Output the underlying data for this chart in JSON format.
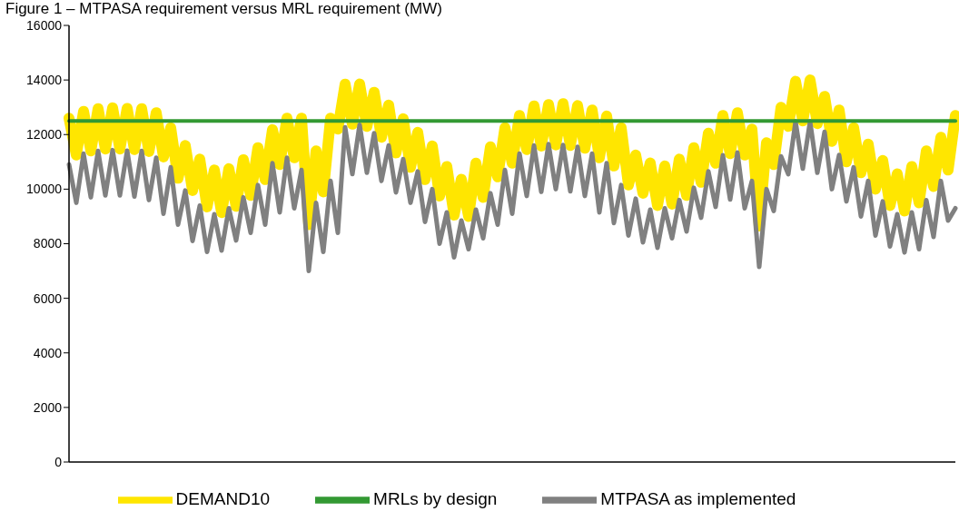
{
  "chart_data": {
    "type": "line",
    "title": "Figure 1 – MTPASA requirement versus MRL requirement (MW)",
    "categories": [
      null,
      null,
      null,
      null,
      null,
      null,
      null,
      null,
      null,
      null,
      null,
      null,
      null,
      null,
      null,
      null,
      null,
      null,
      null,
      null,
      null,
      null,
      null,
      null,
      null,
      null,
      null,
      null,
      null,
      null,
      null,
      null,
      null,
      null,
      null,
      null,
      null,
      null,
      null,
      null,
      null,
      null,
      null,
      null,
      null,
      null,
      null,
      null,
      null,
      null,
      null,
      null,
      null,
      null,
      null,
      null,
      null,
      null,
      null,
      null,
      null,
      null,
      null,
      null,
      null,
      null,
      null,
      null,
      null,
      null,
      null,
      null,
      null,
      null,
      null,
      null,
      null,
      null,
      null,
      null,
      null,
      null,
      null,
      null,
      null,
      null,
      null,
      null,
      null,
      null,
      null,
      null,
      null,
      null,
      null,
      null,
      null,
      null,
      null,
      null,
      null,
      null,
      null,
      null,
      null,
      null,
      null,
      null,
      null,
      null,
      null,
      null,
      null,
      null,
      null,
      null,
      null,
      null,
      null,
      null,
      null,
      null,
      null
    ],
    "series": [
      {
        "name": "DEMAND10",
        "color": "#ffe600",
        "values": [
          12600,
          11250,
          12850,
          11400,
          12950,
          11470,
          12980,
          11470,
          12960,
          11450,
          12950,
          11380,
          12800,
          11180,
          12250,
          10400,
          11600,
          9950,
          11100,
          9350,
          10700,
          9140,
          10750,
          9370,
          11080,
          9770,
          11520,
          10350,
          12180,
          10900,
          12600,
          11150,
          12600,
          8700,
          11400,
          9900,
          12600,
          12200,
          13850,
          12380,
          13850,
          12300,
          13550,
          11900,
          13080,
          11330,
          12580,
          10800,
          12080,
          10350,
          11580,
          9750,
          10830,
          9050,
          10360,
          9000,
          10950,
          9700,
          11550,
          10450,
          12250,
          10950,
          12700,
          11450,
          13050,
          11580,
          13100,
          11620,
          13130,
          11600,
          13060,
          11500,
          12900,
          11150,
          12680,
          10850,
          12250,
          10150,
          11250,
          9850,
          10960,
          9400,
          10850,
          9450,
          11100,
          9770,
          11520,
          10250,
          12050,
          10950,
          12700,
          11300,
          12800,
          11250,
          12200,
          8650,
          11700,
          10900,
          13000,
          12300,
          13950,
          12500,
          14000,
          12400,
          13400,
          11750,
          12900,
          11000,
          12250,
          10600,
          11650,
          10000,
          11050,
          9400,
          10560,
          9200,
          10830,
          9500,
          11400,
          10100,
          11900,
          10700,
          12700
        ]
      },
      {
        "name": "MTPASA as implemented",
        "color": "#808080",
        "values": [
          10900,
          9500,
          11300,
          9700,
          11400,
          9770,
          11430,
          9770,
          11410,
          9730,
          11400,
          9600,
          11150,
          9100,
          10800,
          8700,
          9950,
          8100,
          9400,
          7700,
          9080,
          7750,
          9300,
          8120,
          9700,
          8400,
          10150,
          8700,
          10950,
          9150,
          11150,
          9300,
          10700,
          7000,
          9500,
          7700,
          10300,
          8400,
          12270,
          10550,
          12360,
          10600,
          12050,
          10300,
          11600,
          9880,
          11100,
          9500,
          10650,
          8800,
          10000,
          8000,
          9150,
          7500,
          8850,
          7800,
          9250,
          8200,
          9850,
          8700,
          10700,
          9100,
          11300,
          9750,
          11600,
          9900,
          11650,
          10000,
          11620,
          9920,
          11550,
          9750,
          11300,
          9150,
          10950,
          8760,
          10150,
          8300,
          9650,
          8050,
          9250,
          7850,
          9300,
          8200,
          9600,
          8450,
          10050,
          8950,
          10650,
          9350,
          11240,
          9620,
          11340,
          9300,
          10300,
          7150,
          10000,
          9200,
          11200,
          10550,
          12480,
          10750,
          12480,
          10600,
          12100,
          10000,
          11250,
          9550,
          10800,
          9000,
          10300,
          8300,
          9550,
          7900,
          9080,
          7680,
          9150,
          7800,
          9600,
          8250,
          10300,
          8850,
          9300
        ]
      },
      {
        "name": "MRLs by design",
        "color": "#339933",
        "values": [
          12500,
          12500,
          12500,
          12500,
          12500,
          12500,
          12500,
          12500,
          12500,
          12500,
          12500,
          12500,
          12500,
          12500,
          12500,
          12500,
          12500,
          12500,
          12500,
          12500,
          12500,
          12500,
          12500,
          12500,
          12500,
          12500,
          12500,
          12500,
          12500,
          12500,
          12500,
          12500,
          12500,
          12500,
          12500,
          12500,
          12500,
          12500,
          12500,
          12500,
          12500,
          12500,
          12500,
          12500,
          12500,
          12500,
          12500,
          12500,
          12500,
          12500,
          12500,
          12500,
          12500,
          12500,
          12500,
          12500,
          12500,
          12500,
          12500,
          12500,
          12500,
          12500,
          12500,
          12500,
          12500,
          12500,
          12500,
          12500,
          12500,
          12500,
          12500,
          12500,
          12500,
          12500,
          12500,
          12500,
          12500,
          12500,
          12500,
          12500,
          12500,
          12500,
          12500,
          12500,
          12500,
          12500,
          12500,
          12500,
          12500,
          12500,
          12500,
          12500,
          12500,
          12500,
          12500,
          12500,
          12500,
          12500,
          12500,
          12500,
          12500,
          12500,
          12500,
          12500,
          12500,
          12500,
          12500,
          12500,
          12500,
          12500,
          12500,
          12500,
          12500,
          12500,
          12500,
          12500,
          12500,
          12500,
          12500,
          12500,
          12500,
          12500,
          12500
        ]
      }
    ],
    "ylim": [
      0,
      16000
    ],
    "yticks": [
      0,
      2000,
      4000,
      6000,
      8000,
      10000,
      12000,
      14000,
      16000
    ],
    "grid": false,
    "legend": "bottom",
    "marker": "none",
    "line_style": "solid",
    "tick_labels": "y"
  }
}
